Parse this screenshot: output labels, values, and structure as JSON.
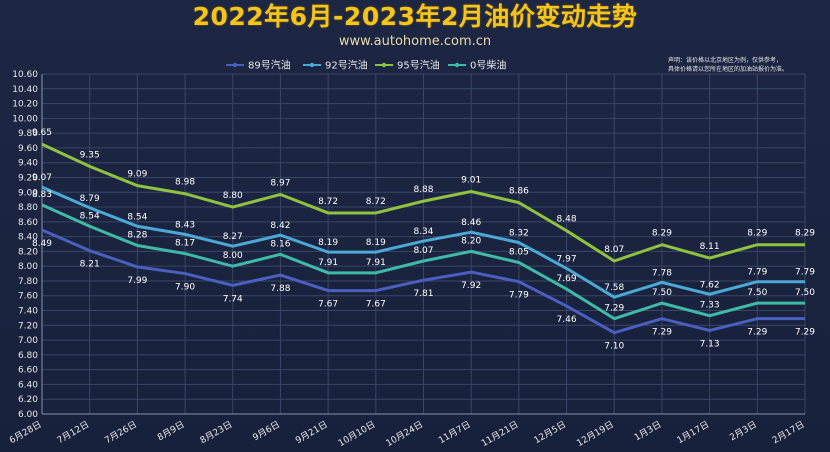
{
  "header": {
    "title": "2022年6月-2023年2月油价变动走势",
    "subtitle": "www.autohome.com.cn",
    "disclaimer_line1": "声明：该价格以北京地区为例，仅供参考，",
    "disclaimer_line2": "具体价格请以您所在地区的加油站报价为准。"
  },
  "chart_data": {
    "type": "line",
    "title": "2022年6月-2023年2月油价变动走势",
    "xlabel": "",
    "ylabel": "",
    "categories": [
      "6月28日",
      "7月12日",
      "7月26日",
      "8月9日",
      "8月23日",
      "9月6日",
      "9月21日",
      "10月10日",
      "10月24日",
      "11月7日",
      "11月21日",
      "12月5日",
      "12月19日",
      "1月3日",
      "1月17日",
      "2月3日",
      "2月17日"
    ],
    "y_ticks": [
      "6.00",
      "6.20",
      "6.40",
      "6.60",
      "6.80",
      "7.00",
      "7.20",
      "7.40",
      "7.60",
      "7.80",
      "8.00",
      "8.20",
      "8.40",
      "8.60",
      "8.80",
      "9.00",
      "9.20",
      "9.40",
      "9.60",
      "9.80",
      "10.00",
      "10.20",
      "10.40",
      "10.60"
    ],
    "ylim": [
      6.0,
      10.6
    ],
    "grid": true,
    "legend_position": "top",
    "series": [
      {
        "name": "89号汽油",
        "color": "#4a5fc0",
        "values": [
          8.49,
          8.21,
          7.99,
          7.9,
          7.74,
          7.88,
          7.67,
          7.67,
          7.81,
          7.92,
          7.79,
          7.46,
          7.1,
          7.29,
          7.13,
          7.29,
          7.29
        ],
        "labels": [
          "8.49",
          "8.21",
          "7.99",
          "7.90",
          "7.74",
          "7.88",
          "7.67",
          "7.67",
          "7.81",
          "7.92",
          "7.79",
          "7.46",
          "7.10",
          "7.29",
          "7.13",
          "7.29",
          "7.29"
        ]
      },
      {
        "name": "92号汽油",
        "color": "#4aa9d6",
        "values": [
          9.07,
          8.79,
          8.54,
          8.43,
          8.27,
          8.42,
          8.19,
          8.19,
          8.34,
          8.46,
          8.32,
          7.97,
          7.58,
          7.78,
          7.62,
          7.79,
          7.79
        ],
        "labels": [
          "9.07",
          "8.79",
          "8.54",
          "8.43",
          "8.27",
          "8.42",
          "8.19",
          "8.19",
          "8.34",
          "8.46",
          "8.32",
          "7.97",
          "7.58",
          "7.78",
          "7.62",
          "7.79",
          "7.79"
        ]
      },
      {
        "name": "95号汽油",
        "color": "#8fc23f",
        "values": [
          9.65,
          9.35,
          9.09,
          8.98,
          8.8,
          8.97,
          8.72,
          8.72,
          8.88,
          9.01,
          8.86,
          8.48,
          8.07,
          8.29,
          8.11,
          8.29,
          8.29
        ],
        "labels": [
          "9.65",
          "9.35",
          "9.09",
          "8.98",
          "8.80",
          "8.97",
          "8.72",
          "8.72",
          "8.88",
          "9.01",
          "8.86",
          "8.48",
          "8.07",
          "8.29",
          "8.11",
          "8.29",
          "8.29"
        ]
      },
      {
        "name": "0号柴油",
        "color": "#3fb9a8",
        "values": [
          8.83,
          8.54,
          8.28,
          8.17,
          8.0,
          8.16,
          7.91,
          7.91,
          8.07,
          8.2,
          8.05,
          7.69,
          7.29,
          7.5,
          7.33,
          7.5,
          7.5
        ],
        "labels": [
          "8.83",
          "8.54",
          "8.28",
          "8.17",
          "8.00",
          "8.16",
          "7.91",
          "7.91",
          "8.07",
          "8.20",
          "8.05",
          "7.69",
          "7.29",
          "7.50",
          "7.33",
          "7.50",
          "7.50"
        ]
      }
    ]
  }
}
